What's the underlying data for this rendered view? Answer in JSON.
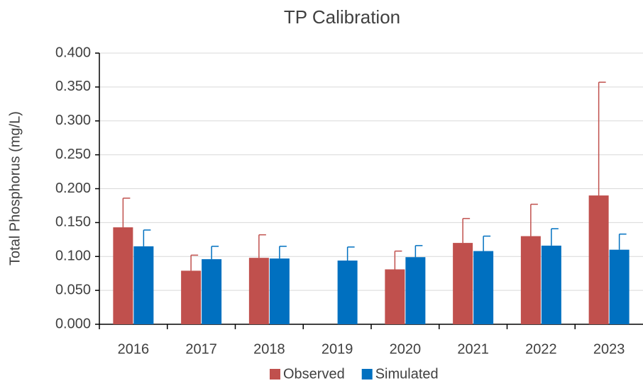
{
  "chart_data": {
    "type": "bar",
    "title": "TP Calibration",
    "y_label": "Total Phosphorus (mg/L)",
    "categories": [
      "2016",
      "2017",
      "2018",
      "2019",
      "2020",
      "2021",
      "2022",
      "2023"
    ],
    "series": [
      {
        "name": "Observed",
        "color": "#c0504d",
        "values": [
          0.143,
          0.079,
          0.098,
          null,
          0.081,
          0.12,
          0.13,
          0.19
        ],
        "errors": [
          0.043,
          0.023,
          0.034,
          null,
          0.027,
          0.036,
          0.047,
          0.167
        ]
      },
      {
        "name": "Simulated",
        "color": "#0070c0",
        "values": [
          0.115,
          0.096,
          0.097,
          0.094,
          0.099,
          0.108,
          0.116,
          0.11
        ],
        "errors": [
          0.024,
          0.019,
          0.018,
          0.02,
          0.017,
          0.022,
          0.025,
          0.023
        ]
      }
    ],
    "ylim": [
      0,
      0.4
    ],
    "yticks": [
      {
        "value": 0,
        "label": "0.000"
      },
      {
        "value": 0.05,
        "label": "0.050"
      },
      {
        "value": 0.1,
        "label": "0.100"
      },
      {
        "value": 0.15,
        "label": "0.150"
      },
      {
        "value": 0.2,
        "label": "0.200"
      },
      {
        "value": 0.25,
        "label": "0.250"
      },
      {
        "value": 0.3,
        "label": "0.300"
      },
      {
        "value": 0.35,
        "label": "0.350"
      },
      {
        "value": 0.4,
        "label": "0.400"
      }
    ],
    "grid": true,
    "legend": "bottom"
  }
}
